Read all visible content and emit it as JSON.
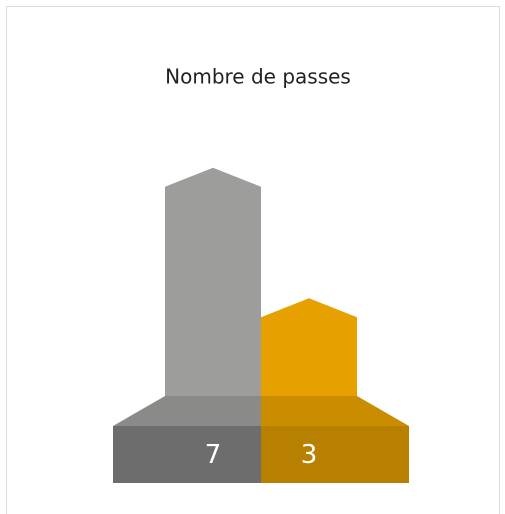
{
  "chart_data": {
    "type": "bar",
    "title": "Nombre de passes",
    "values": [
      7,
      3
    ],
    "colors": [
      "#9d9e9c",
      "#e6a000"
    ]
  }
}
